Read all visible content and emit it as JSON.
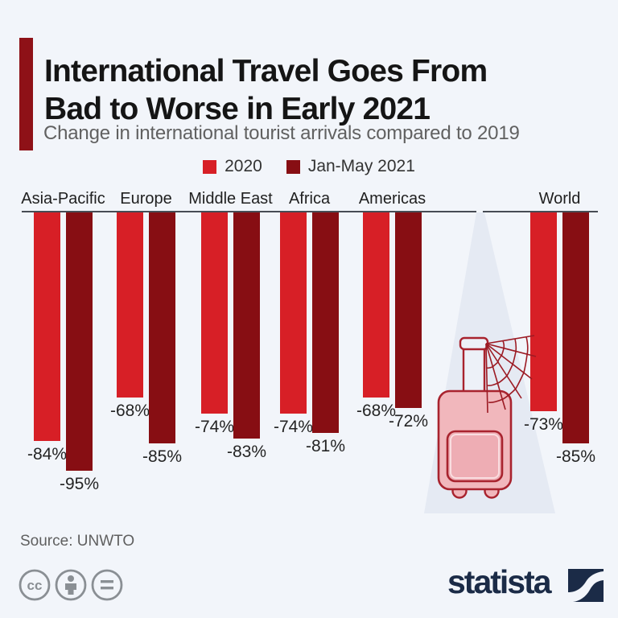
{
  "header": {
    "title_lines": [
      "International Travel Goes From",
      "Bad to Worse in Early 2021"
    ],
    "subtitle": "Change in international tourist arrivals compared to 2019",
    "accent_color": "#8e1117"
  },
  "legend": {
    "items": [
      {
        "label": "2020",
        "color": "#d71f26"
      },
      {
        "label": "Jan-May 2021",
        "color": "#870e13"
      }
    ]
  },
  "chart_data": {
    "type": "bar",
    "title": "International Travel Goes From Bad to Worse in Early 2021",
    "subtitle": "Change in international tourist arrivals compared to 2019",
    "categories": [
      "Asia-Pacific",
      "Europe",
      "Middle East",
      "Africa",
      "Americas",
      "World"
    ],
    "series": [
      {
        "name": "2020",
        "color": "#d71f26",
        "values": [
          -84,
          -68,
          -74,
          -74,
          -68,
          -73
        ]
      },
      {
        "name": "Jan-May 2021",
        "color": "#870e13",
        "values": [
          -95,
          -85,
          -83,
          -81,
          -72,
          -85
        ]
      }
    ],
    "value_suffix": "%",
    "ylim": [
      -100,
      0
    ],
    "orientation": "bars-hang-from-top-baseline",
    "grid": false,
    "legend_position": "top-center",
    "axis_color": "#474c54"
  },
  "illustration": {
    "name": "pink suitcase with spider web under spotlight",
    "suitcase_color": "#f1b7bc",
    "outline_color": "#a8232e",
    "web_color": "#9c1b24",
    "beam_color": "#e5eaf3"
  },
  "footer": {
    "source": "Source: UNWTO",
    "license_icons": [
      "cc-icon",
      "attribution-person-icon",
      "equals-icon"
    ],
    "brand": "statista",
    "brand_color": "#1b2b47"
  }
}
